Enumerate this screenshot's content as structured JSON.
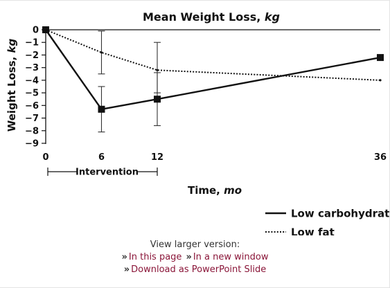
{
  "chart_data": {
    "type": "line",
    "title": "Mean Weight Loss, kg",
    "xlabel": "Time, mo",
    "ylabel": "Weight Loss, kg",
    "x_ticks": [
      0,
      6,
      12,
      36
    ],
    "y_ticks": [
      0,
      -1,
      -2,
      -3,
      -4,
      -5,
      -6,
      -7,
      -8,
      -9
    ],
    "y_tick_labels": [
      "0",
      "−1",
      "−2",
      "−3",
      "−4",
      "−5",
      "−6",
      "−7",
      "−8",
      "−9"
    ],
    "xlim": [
      0,
      36
    ],
    "ylim": [
      -9,
      0
    ],
    "grid": false,
    "legend_position": "bottom-right",
    "annotation": {
      "label": "Intervention",
      "x_start": 0,
      "x_end": 12
    },
    "series": [
      {
        "name": "Low carbohydrate",
        "style": "solid",
        "marker": "square",
        "x": [
          0,
          6,
          12,
          36
        ],
        "y": [
          0,
          -6.3,
          -5.5,
          -2.2
        ],
        "err_low": [
          null,
          -8.1,
          -7.6,
          null
        ],
        "err_high": [
          null,
          -4.5,
          -3.4,
          null
        ]
      },
      {
        "name": "Low fat",
        "style": "dotted",
        "marker": "none",
        "x": [
          0,
          6,
          12,
          36
        ],
        "y": [
          0,
          -1.8,
          -3.2,
          -4.0
        ],
        "err_low": [
          null,
          -3.5,
          -5.0,
          null
        ],
        "err_high": [
          null,
          -0.1,
          -1.0,
          null
        ]
      }
    ]
  },
  "links": {
    "view_larger": "View larger version:",
    "in_this_page": "In this page",
    "in_new_window": "In a new window",
    "download": "Download as PowerPoint Slide",
    "arrow_glyph": "»"
  }
}
